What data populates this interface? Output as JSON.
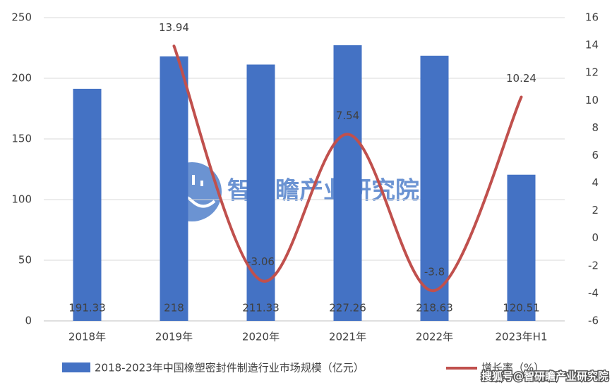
{
  "chart_data": {
    "type": "bar",
    "categories": [
      "2018年",
      "2019年",
      "2020年",
      "2021年",
      "2022年",
      "2023年H1"
    ],
    "series": [
      {
        "name": "2018-2023年中国橡塑密封件制造行业市场规模（亿元）",
        "color": "#4472c4",
        "type": "bar",
        "values": [
          191.33,
          218,
          211.33,
          227.26,
          218.63,
          120.51
        ]
      },
      {
        "name": "增长率（%）",
        "color": "#c0504d",
        "type": "line",
        "axis": "y2",
        "values": [
          null,
          13.94,
          -3.06,
          7.54,
          -3.8,
          10.24
        ]
      }
    ],
    "ylim": [
      0,
      250
    ],
    "yticks": [
      0,
      50,
      100,
      150,
      200,
      250
    ],
    "y2lim": [
      -6,
      16
    ],
    "y2ticks": [
      -6,
      -4,
      -2,
      0,
      2,
      4,
      6,
      8,
      10,
      12,
      14,
      16
    ],
    "grid": true,
    "watermark": "智研瞻产业研究院",
    "source_watermark": "搜狐号@智研瞻产业研究院"
  }
}
